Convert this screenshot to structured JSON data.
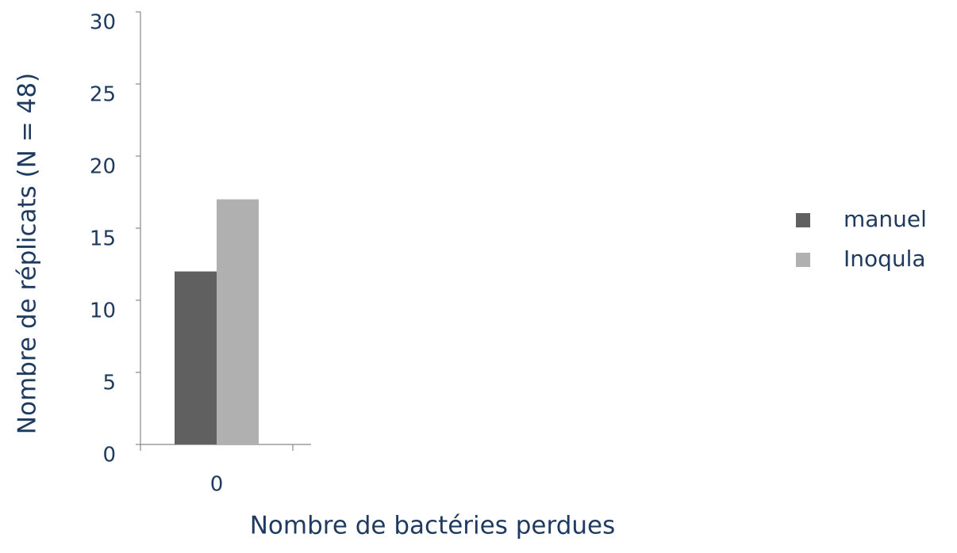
{
  "chart_data": {
    "type": "bar",
    "x_label": "Nombre de bactéries perdues",
    "y_label": "Nombre de réplicats  (N = 48)",
    "categories": [
      "0"
    ],
    "series": [
      {
        "name": "manuel",
        "color": "#606060",
        "values": [
          12
        ]
      },
      {
        "name": "Inoqula",
        "color": "#b0b0b0",
        "values": [
          17
        ]
      }
    ],
    "ylim": [
      0,
      30
    ],
    "yticks": [
      0,
      5,
      10,
      15,
      20,
      25,
      30
    ],
    "grid": false,
    "legend": "right"
  }
}
